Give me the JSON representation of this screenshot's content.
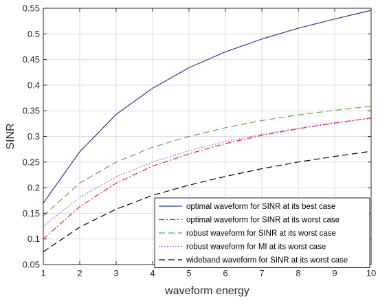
{
  "chart_data": {
    "type": "line",
    "title": "",
    "xlabel": "waveform energy",
    "ylabel": "SINR",
    "xlim": [
      1,
      10
    ],
    "ylim": [
      0.05,
      0.55
    ],
    "xticks": [
      1,
      2,
      3,
      4,
      5,
      6,
      7,
      8,
      9,
      10
    ],
    "yticks": [
      0.05,
      0.1,
      0.15,
      0.2,
      0.25,
      0.3,
      0.35,
      0.4,
      0.45,
      0.5,
      0.55
    ],
    "xtick_labels": [
      "1",
      "2",
      "3",
      "4",
      "5",
      "6",
      "7",
      "8",
      "9",
      "10"
    ],
    "ytick_labels": [
      "0.05",
      "0.1",
      "0.15",
      "0.2",
      "0.25",
      "0.3",
      "0.35",
      "0.4",
      "0.45",
      "0.5",
      "0.55"
    ],
    "grid": true,
    "legend_position": "bottom-right",
    "x": [
      1,
      2,
      3,
      4,
      5,
      6,
      7,
      8,
      9,
      10
    ],
    "series": [
      {
        "name": "optimal waveform for SINR at its best case",
        "color": "#1f3f9a",
        "style": "solid",
        "values": [
          0.17,
          0.27,
          0.343,
          0.394,
          0.434,
          0.465,
          0.49,
          0.511,
          0.529,
          0.546
        ]
      },
      {
        "name": "optimal waveform for SINR at its worst case",
        "color": "#e8262a",
        "style": "dashdot",
        "values": [
          0.1,
          0.163,
          0.209,
          0.242,
          0.266,
          0.286,
          0.302,
          0.315,
          0.326,
          0.336
        ]
      },
      {
        "name": "robust waveform for SINR at its worst case",
        "color": "#55b03f",
        "style": "dashed",
        "values": [
          0.145,
          0.209,
          0.25,
          0.279,
          0.3,
          0.317,
          0.331,
          0.342,
          0.351,
          0.359
        ]
      },
      {
        "name": "robust waveform for MI at its worst case",
        "color": "#b43fcf",
        "style": "dotted",
        "values": [
          0.125,
          0.181,
          0.221,
          0.25,
          0.272,
          0.29,
          0.304,
          0.316,
          0.327,
          0.335
        ]
      },
      {
        "name": "wideband waveform for SINR at its worst case",
        "color": "#000000",
        "style": "dashed",
        "values": [
          0.075,
          0.123,
          0.158,
          0.185,
          0.205,
          0.222,
          0.237,
          0.25,
          0.261,
          0.271
        ]
      }
    ]
  }
}
